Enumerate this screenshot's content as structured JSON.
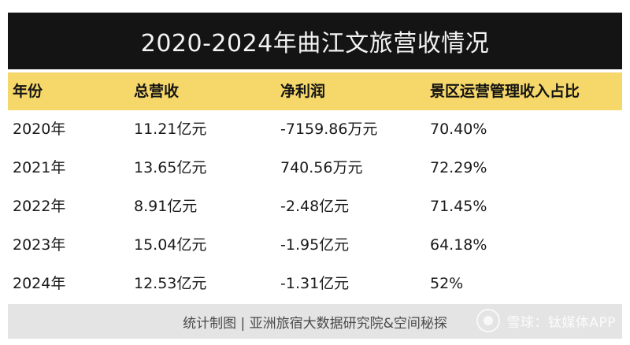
{
  "title": "2020-2024年曲江文旅营收情况",
  "table": {
    "headers": [
      "年份",
      "总营收",
      "净利润",
      "景区运营管理收入占比"
    ],
    "rows": [
      [
        "2020年",
        "11.21亿元",
        "-7159.86万元",
        "70.40%"
      ],
      [
        "2021年",
        "13.65亿元",
        "740.56万元",
        "72.29%"
      ],
      [
        "2022年",
        "8.91亿元",
        "-2.48亿元",
        "71.45%"
      ],
      [
        "2023年",
        "15.04亿元",
        "-1.95亿元",
        "64.18%"
      ],
      [
        "2024年",
        "12.53亿元",
        "-1.31亿元",
        "52%"
      ]
    ]
  },
  "footer": "统计制图 | 亚洲旅宿大数据研究院&空间秘探",
  "watermark": "雪球：钛媒体APP",
  "colors": {
    "title_bg": "#141414",
    "header_bg": "#f5d76a",
    "footer_bg": "#e4e4e4"
  }
}
